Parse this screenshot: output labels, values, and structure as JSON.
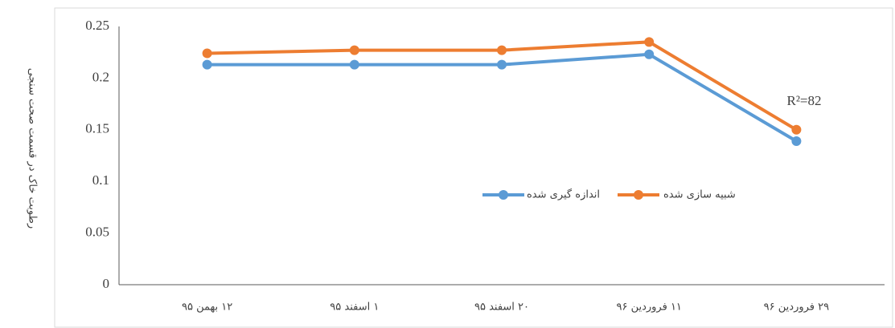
{
  "chart_data": {
    "type": "line",
    "y_label": "رطوبت خاک در قسمت صحت سنجی",
    "annotation": "R²=82",
    "categories": [
      "۱۲ بهمن ۹۵",
      "۱ اسفند ۹۵",
      "۲۰ اسفند ۹۵",
      "۱۱ فروردین ۹۶",
      "۲۹ فروردین ۹۶"
    ],
    "series": [
      {
        "name": "اندازه گیری شده",
        "color": "#5b9bd5",
        "values": [
          0.213,
          0.213,
          0.213,
          0.223,
          0.139
        ]
      },
      {
        "name": "شبیه سازی شده",
        "color": "#ed7d31",
        "values": [
          0.224,
          0.227,
          0.227,
          0.235,
          0.15
        ]
      }
    ],
    "ylim": [
      0,
      0.25
    ],
    "yticks": [
      0,
      0.05,
      0.1,
      0.15,
      0.2,
      0.25
    ],
    "grid": false
  }
}
